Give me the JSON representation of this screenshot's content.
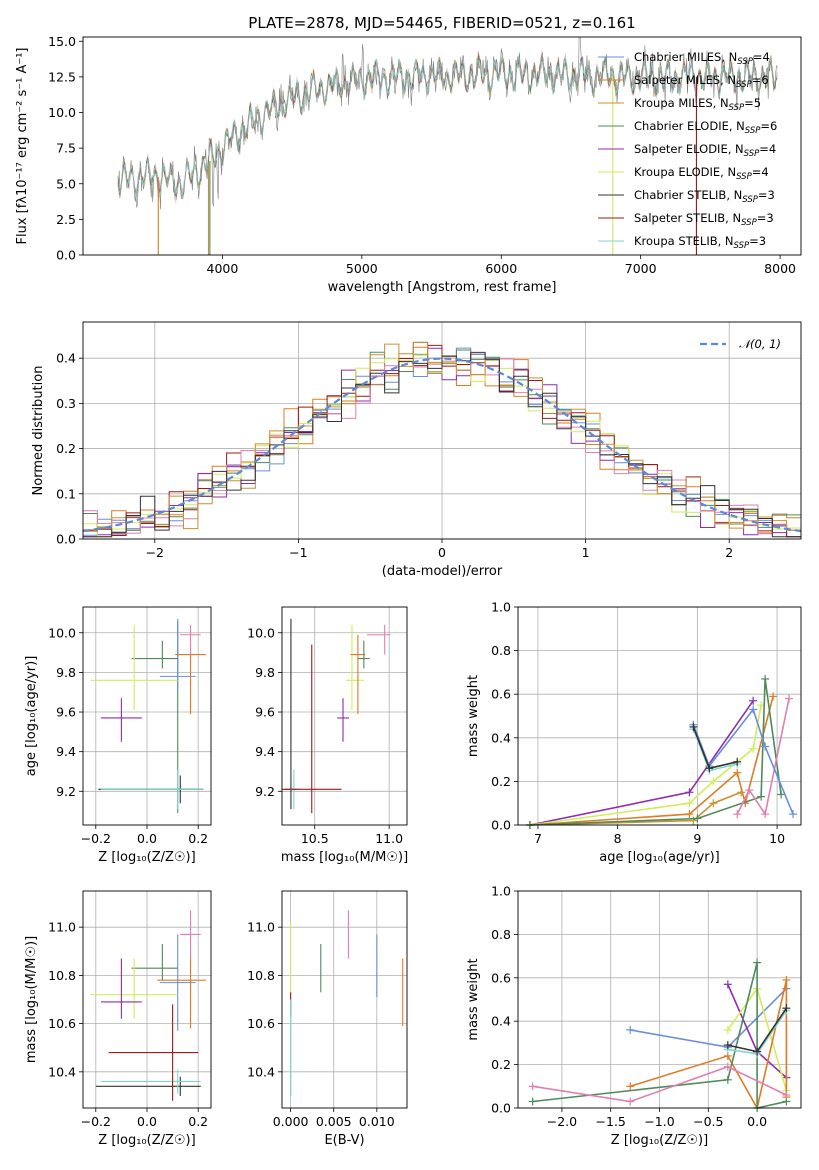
{
  "figure": {
    "title": "PLATE=2878, MJD=54465, FIBERID=0521, z=0.161"
  },
  "colors": {
    "chabrier_miles": "#6a8fd8",
    "salpeter_miles": "#e07b24",
    "kroupa_miles": "#c8922e",
    "chabrier_elodie": "#4f8a5b",
    "salpeter_elodie": "#8e2cb3",
    "kroupa_elodie": "#d2ec5a",
    "chabrier_stelib": "#333333",
    "salpeter_stelib": "#a01818",
    "kroupa_stelib": "#7fd6d0",
    "pink": "#e07fb0",
    "gray": "#7f7f7f"
  },
  "chart_data": [
    {
      "type": "line",
      "panel": "spectrum",
      "title": "PLATE=2878, MJD=54465, FIBERID=0521, z=0.161",
      "xlabel": "wavelength [Angstrom, rest frame]",
      "ylabel": "Flux [fλ10⁻¹⁷ erg cm⁻² s⁻¹ A⁻¹]",
      "xlim": [
        3000,
        8150
      ],
      "ylim": [
        0,
        15.3
      ],
      "xticks": [
        "4000",
        "5000",
        "6000",
        "7000",
        "8000"
      ],
      "yticks": [
        "0.0",
        "2.5",
        "5.0",
        "7.5",
        "10.0",
        "12.5",
        "15.0"
      ],
      "continuum": {
        "x": [
          3250,
          3500,
          3700,
          3900,
          4100,
          4300,
          4500,
          4700,
          5000,
          5300,
          5600,
          6000,
          6500,
          7000,
          7500,
          8000
        ],
        "y": [
          5.2,
          5.6,
          5.0,
          6.5,
          8.5,
          10.0,
          11.0,
          11.7,
          12.3,
          12.5,
          12.6,
          12.7,
          12.6,
          12.5,
          12.5,
          12.5
        ]
      },
      "legend_position": "right",
      "legend": [
        {
          "label": "Chabrier MILES, N",
          "sub": "SSP",
          "val": "=4"
        },
        {
          "label": "Salpeter MILES, N",
          "sub": "SSP",
          "val": "=6"
        },
        {
          "label": "Kroupa MILES, N",
          "sub": "SSP",
          "val": "=5"
        },
        {
          "label": "Chabrier ELODIE, N",
          "sub": "SSP",
          "val": "=6"
        },
        {
          "label": "Salpeter ELODIE, N",
          "sub": "SSP",
          "val": "=4"
        },
        {
          "label": "Kroupa ELODIE, N",
          "sub": "SSP",
          "val": "=4"
        },
        {
          "label": "Chabrier STELIB, N",
          "sub": "SSP",
          "val": "=3"
        },
        {
          "label": "Salpeter STELIB, N",
          "sub": "SSP",
          "val": "=3"
        },
        {
          "label": "Kroupa STELIB, N",
          "sub": "SSP",
          "val": "=3"
        }
      ]
    },
    {
      "type": "line",
      "panel": "residual-histogram",
      "xlabel": "(data-model)/error",
      "ylabel": "Normed distribution",
      "xlim": [
        -2.5,
        2.5
      ],
      "ylim": [
        0,
        0.48
      ],
      "xticks": [
        "−2",
        "−1",
        "0",
        "1",
        "2"
      ],
      "yticks": [
        "0.0",
        "0.1",
        "0.2",
        "0.3",
        "0.4"
      ],
      "legend_label": "𝒩(0, 1)",
      "bins": {
        "start": -2.5,
        "width": 0.1,
        "count": 50
      },
      "grid": true
    },
    {
      "type": "scatter",
      "panel": "age-vs-Z",
      "xlabel": "Z [log₁₀(Z/Z☉)]",
      "ylabel": "age  [log₁₀(age/yr)]",
      "xlim": [
        -0.25,
        0.25
      ],
      "ylim": [
        9.03,
        10.13
      ],
      "xticks": [
        "−0.2",
        "0.0",
        "0.2"
      ],
      "yticks": [
        "9.2",
        "9.4",
        "9.6",
        "9.8",
        "10.0"
      ],
      "points": [
        {
          "x": 0.13,
          "y": 9.21,
          "xerr": [
            0.32,
            0.09
          ],
          "yerr": [
            0.07,
            0.07
          ],
          "c": "chabrier_stelib"
        },
        {
          "x": 0.12,
          "y": 9.21,
          "xerr": [
            0.28,
            0.09
          ],
          "yerr": [
            0.12,
            0.85
          ],
          "c": "chabrier_elodie"
        },
        {
          "x": 0.12,
          "y": 9.21,
          "xerr": [
            0.3,
            0.1
          ],
          "yerr": [
            0.1,
            0.1
          ],
          "c": "kroupa_stelib"
        },
        {
          "x": 0.12,
          "y": 9.78,
          "xerr": [
            0.07,
            0.07
          ],
          "yerr": [
            0.07,
            0.29
          ],
          "c": "chabrier_miles"
        },
        {
          "x": 0.17,
          "y": 9.89,
          "xerr": [
            0.06,
            0.06
          ],
          "yerr": [
            0.3,
            0.1
          ],
          "c": "salpeter_miles"
        },
        {
          "x": 0.06,
          "y": 9.87,
          "xerr": [
            0.12,
            0.06
          ],
          "yerr": [
            0.05,
            0.09
          ],
          "c": "chabrier_elodie"
        },
        {
          "x": -0.05,
          "y": 9.76,
          "xerr": [
            0.17,
            0.17
          ],
          "yerr": [
            0.15,
            0.28
          ],
          "c": "kroupa_elodie"
        },
        {
          "x": -0.1,
          "y": 9.57,
          "xerr": [
            0.08,
            0.08
          ],
          "yerr": [
            0.12,
            0.1
          ],
          "c": "salpeter_elodie"
        },
        {
          "x": 0.17,
          "y": 9.99,
          "xerr": [
            0.04,
            0.04
          ],
          "yerr": [
            0.1,
            0.05
          ],
          "c": "pink"
        }
      ]
    },
    {
      "type": "scatter",
      "panel": "age-vs-mass",
      "xlabel": "mass [log₁₀(M/M☉)]",
      "xlim": [
        10.28,
        11.12
      ],
      "ylim": [
        9.03,
        10.13
      ],
      "xticks": [
        "10.5",
        "11.0"
      ],
      "yticks": [
        "9.2",
        "9.4",
        "9.6",
        "9.8",
        "10.0"
      ],
      "points": [
        {
          "x": 10.34,
          "y": 9.21,
          "xerr": [
            0.04,
            0.04
          ],
          "yerr": [
            0.1,
            0.86
          ],
          "c": "chabrier_stelib"
        },
        {
          "x": 10.36,
          "y": 9.21,
          "xerr": [
            0.04,
            0.04
          ],
          "yerr": [
            0.1,
            0.1
          ],
          "c": "kroupa_stelib"
        },
        {
          "x": 10.48,
          "y": 9.21,
          "xerr": [
            0.2,
            0.2
          ],
          "yerr": [
            0.12,
            0.73
          ],
          "c": "salpeter_stelib"
        },
        {
          "x": 10.75,
          "y": 9.76,
          "xerr": [
            0.04,
            0.08
          ],
          "yerr": [
            0.15,
            0.28
          ],
          "c": "kroupa_elodie"
        },
        {
          "x": 10.69,
          "y": 9.57,
          "xerr": [
            0.04,
            0.04
          ],
          "yerr": [
            0.12,
            0.1
          ],
          "c": "salpeter_elodie"
        },
        {
          "x": 10.79,
          "y": 9.89,
          "xerr": [
            0.05,
            0.05
          ],
          "yerr": [
            0.3,
            0.1
          ],
          "c": "salpeter_miles"
        },
        {
          "x": 10.83,
          "y": 9.87,
          "xerr": [
            0.04,
            0.04
          ],
          "yerr": [
            0.05,
            0.09
          ],
          "c": "chabrier_elodie"
        },
        {
          "x": 10.97,
          "y": 9.99,
          "xerr": [
            0.12,
            0.04
          ],
          "yerr": [
            0.1,
            0.05
          ],
          "c": "pink"
        }
      ]
    },
    {
      "type": "line",
      "panel": "mass-weight-vs-age",
      "xlabel": "age  [log₁₀(age/yr)]",
      "ylabel": "mass weight",
      "xlim": [
        6.75,
        10.3
      ],
      "ylim": [
        0,
        1.0
      ],
      "xticks": [
        "7",
        "8",
        "9",
        "10"
      ],
      "yticks": [
        "0.0",
        "0.2",
        "0.4",
        "0.6",
        "0.8",
        "1.0"
      ],
      "series": [
        {
          "c": "salpeter_elodie",
          "x": [
            6.9,
            8.9,
            9.7
          ],
          "y": [
            0.0,
            0.15,
            0.57
          ]
        },
        {
          "c": "kroupa_elodie",
          "x": [
            6.9,
            8.9,
            9.2,
            9.7,
            9.8
          ],
          "y": [
            0.0,
            0.1,
            0.2,
            0.35,
            0.55
          ]
        },
        {
          "c": "salpeter_miles",
          "x": [
            6.9,
            8.9,
            9.5,
            9.6,
            9.95
          ],
          "y": [
            0.0,
            0.05,
            0.24,
            0.1,
            0.59
          ]
        },
        {
          "c": "kroupa_miles",
          "x": [
            6.9,
            8.95,
            9.2,
            9.55
          ],
          "y": [
            0.0,
            0.02,
            0.1,
            0.15
          ]
        },
        {
          "c": "chabrier_elodie",
          "x": [
            6.9,
            9.0,
            9.8,
            9.85,
            10.05
          ],
          "y": [
            0.0,
            0.03,
            0.13,
            0.67,
            0.14
          ]
        },
        {
          "c": "pink",
          "x": [
            9.5,
            9.65,
            9.85,
            10.15
          ],
          "y": [
            0.05,
            0.16,
            0.05,
            0.58
          ]
        },
        {
          "c": "chabrier_miles",
          "x": [
            8.95,
            9.15,
            9.7,
            9.85,
            10.2
          ],
          "y": [
            0.46,
            0.27,
            0.53,
            0.36,
            0.05
          ]
        },
        {
          "c": "kroupa_stelib",
          "x": [
            8.95,
            9.15,
            9.5
          ],
          "y": [
            0.44,
            0.25,
            0.28
          ]
        },
        {
          "c": "chabrier_stelib",
          "x": [
            8.95,
            9.15,
            9.5
          ],
          "y": [
            0.45,
            0.26,
            0.29
          ]
        }
      ]
    },
    {
      "type": "scatter",
      "panel": "mass-vs-Z",
      "xlabel": "Z [log₁₀(Z/Z☉)]",
      "ylabel": "mass [log₁₀(M/M☉)]",
      "xlim": [
        -0.25,
        0.25
      ],
      "ylim": [
        10.25,
        11.15
      ],
      "xticks": [
        "−0.2",
        "0.0",
        "0.2"
      ],
      "yticks": [
        "10.4",
        "10.6",
        "10.8",
        "11.0"
      ],
      "points": [
        {
          "x": 0.13,
          "y": 10.34,
          "xerr": [
            0.33,
            0.08
          ],
          "yerr": [
            0.04,
            0.04
          ],
          "c": "chabrier_stelib"
        },
        {
          "x": 0.12,
          "y": 10.36,
          "xerr": [
            0.3,
            0.09
          ],
          "yerr": [
            0.05,
            0.05
          ],
          "c": "kroupa_stelib"
        },
        {
          "x": 0.1,
          "y": 10.48,
          "xerr": [
            0.25,
            0.1
          ],
          "yerr": [
            0.2,
            0.2
          ],
          "c": "salpeter_stelib"
        },
        {
          "x": 0.12,
          "y": 10.77,
          "xerr": [
            0.07,
            0.07
          ],
          "yerr": [
            0.2,
            0.2
          ],
          "c": "chabrier_miles"
        },
        {
          "x": 0.17,
          "y": 10.78,
          "xerr": [
            0.13,
            0.06
          ],
          "yerr": [
            0.2,
            0.12
          ],
          "c": "salpeter_miles"
        },
        {
          "x": 0.06,
          "y": 10.83,
          "xerr": [
            0.12,
            0.06
          ],
          "yerr": [
            0.05,
            0.1
          ],
          "c": "chabrier_elodie"
        },
        {
          "x": -0.05,
          "y": 10.72,
          "xerr": [
            0.17,
            0.17
          ],
          "yerr": [
            0.1,
            0.15
          ],
          "c": "kroupa_elodie"
        },
        {
          "x": -0.1,
          "y": 10.69,
          "xerr": [
            0.08,
            0.08
          ],
          "yerr": [
            0.07,
            0.18
          ],
          "c": "salpeter_elodie"
        },
        {
          "x": 0.17,
          "y": 10.97,
          "xerr": [
            0.04,
            0.04
          ],
          "yerr": [
            0.1,
            0.1
          ],
          "c": "pink"
        }
      ]
    },
    {
      "type": "scatter",
      "panel": "mass-vs-EBV",
      "xlabel": "E(B-V)",
      "xlim": [
        -0.001,
        0.0135
      ],
      "ylim": [
        10.25,
        11.15
      ],
      "xticks": [
        "0.000",
        "0.005",
        "0.010"
      ],
      "yticks": [
        "10.4",
        "10.6",
        "10.8",
        "11.0"
      ],
      "points": [
        {
          "x": 0.0,
          "y": 10.5,
          "xerr": [
            0,
            0
          ],
          "yerr": [
            0.2,
            0.2
          ],
          "c": "chabrier_miles"
        },
        {
          "x": 0.0,
          "y": 10.72,
          "xerr": [
            0,
            0
          ],
          "yerr": [
            0.15,
            0.3
          ],
          "c": "kroupa_elodie"
        },
        {
          "x": 0.0,
          "y": 10.68,
          "xerr": [
            0,
            0
          ],
          "yerr": [
            0.05,
            0.05
          ],
          "c": "salpeter_stelib"
        },
        {
          "x": 0.0,
          "y": 10.5,
          "xerr": [
            0,
            0
          ],
          "yerr": [
            0.2,
            0.2
          ],
          "c": "kroupa_stelib"
        },
        {
          "x": 0.0035,
          "y": 10.83,
          "xerr": [
            0,
            0
          ],
          "yerr": [
            0.1,
            0.1
          ],
          "c": "chabrier_elodie"
        },
        {
          "x": 0.0067,
          "y": 10.97,
          "xerr": [
            0,
            0
          ],
          "yerr": [
            0.1,
            0.1
          ],
          "c": "pink"
        },
        {
          "x": 0.01,
          "y": 10.84,
          "xerr": [
            0,
            0
          ],
          "yerr": [
            0.13,
            0.13
          ],
          "c": "chabrier_miles"
        },
        {
          "x": 0.013,
          "y": 10.73,
          "xerr": [
            0,
            0
          ],
          "yerr": [
            0.14,
            0.14
          ],
          "c": "salpeter_miles"
        }
      ]
    },
    {
      "type": "line",
      "panel": "mass-weight-vs-Z",
      "xlabel": "Z [log₁₀(Z/Z☉)]",
      "ylabel": "mass weight",
      "xlim": [
        -2.45,
        0.45
      ],
      "ylim": [
        0,
        1.0
      ],
      "xticks": [
        "−2.0",
        "−1.5",
        "−1.0",
        "−0.5",
        "0.0"
      ],
      "yticks": [
        "0.0",
        "0.2",
        "0.4",
        "0.6",
        "0.8",
        "1.0"
      ],
      "series": [
        {
          "c": "chabrier_miles",
          "x": [
            -1.3,
            -0.3,
            0.3
          ],
          "y": [
            0.36,
            0.28,
            0.55
          ]
        },
        {
          "c": "salpeter_elodie",
          "x": [
            -0.3,
            0.0,
            0.3
          ],
          "y": [
            0.57,
            0.26,
            0.14
          ]
        },
        {
          "c": "kroupa_elodie",
          "x": [
            -0.3,
            0.0,
            0.3
          ],
          "y": [
            0.36,
            0.55,
            0.08
          ]
        },
        {
          "c": "salpeter_miles",
          "x": [
            -1.3,
            -0.3,
            0.0,
            0.3,
            0.3
          ],
          "y": [
            0.1,
            0.24,
            0.0,
            0.59,
            0.05
          ]
        },
        {
          "c": "chabrier_elodie",
          "x": [
            -2.3,
            -0.3,
            0.0,
            0.0,
            0.3
          ],
          "y": [
            0.03,
            0.13,
            0.67,
            0.0,
            0.03
          ]
        },
        {
          "c": "pink",
          "x": [
            -2.3,
            -1.3,
            -0.3,
            0.3
          ],
          "y": [
            0.1,
            0.03,
            0.19,
            0.06
          ]
        },
        {
          "c": "kroupa_stelib",
          "x": [
            -0.3,
            0.0,
            0.3
          ],
          "y": [
            0.27,
            0.25,
            0.45
          ]
        },
        {
          "c": "chabrier_stelib",
          "x": [
            -0.3,
            0.0,
            0.3
          ],
          "y": [
            0.29,
            0.26,
            0.46
          ]
        }
      ]
    }
  ]
}
